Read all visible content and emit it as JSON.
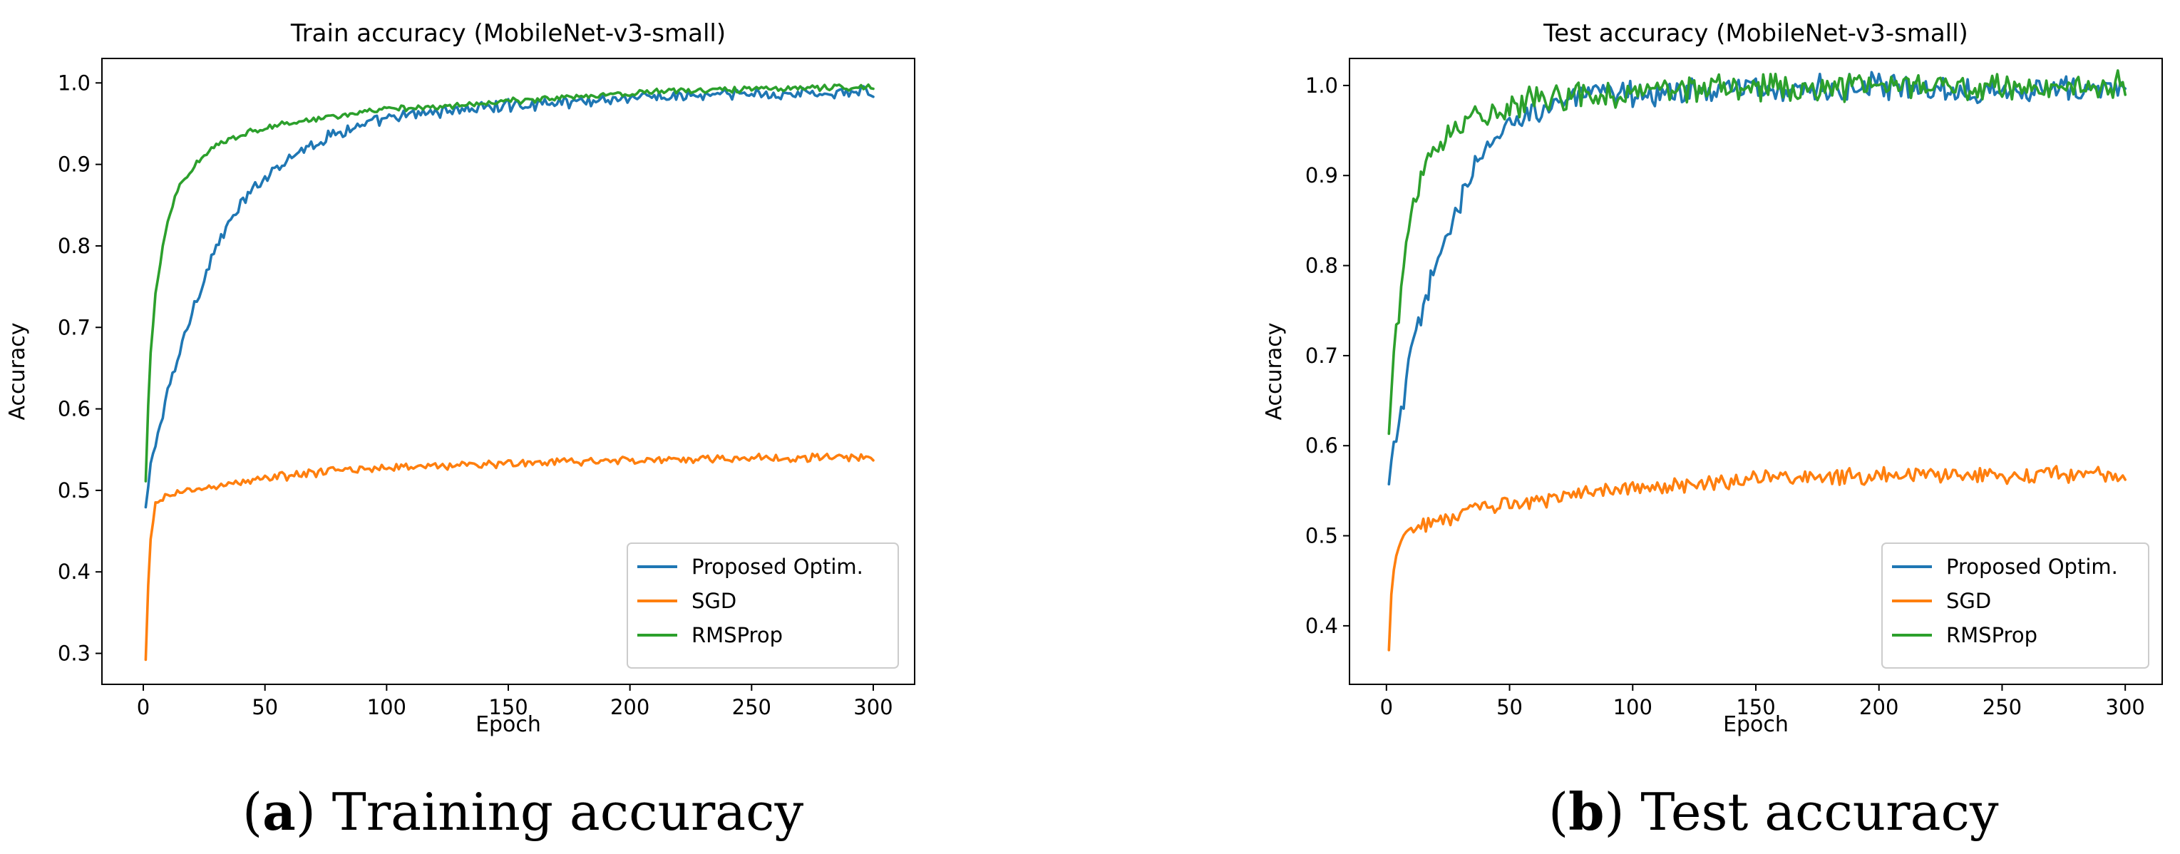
{
  "chart_data": [
    {
      "type": "line",
      "title": "Train accuracy (MobileNet-v3-small)",
      "xlabel": "Epoch",
      "ylabel": "Accuracy",
      "xlim": [
        -17,
        317
      ],
      "ylim": [
        0.262,
        1.03
      ],
      "xticks": [
        0,
        50,
        100,
        150,
        200,
        250,
        300
      ],
      "xtick_labels": [
        "0",
        "50",
        "100",
        "150",
        "200",
        "250",
        "300"
      ],
      "yticks": [
        0.3,
        0.4,
        0.5,
        0.6,
        0.7,
        0.8,
        0.9,
        1.0
      ],
      "ytick_labels": [
        "0.3",
        "0.4",
        "0.5",
        "0.6",
        "0.7",
        "0.8",
        "0.9",
        "1.0"
      ],
      "legend_position": "lower-right",
      "caption": {
        "letter": "a",
        "text": ") Training accuracy"
      },
      "series": [
        {
          "name": "Proposed Optim.",
          "color": "#1f77b4",
          "noise": 0.006,
          "x": [
            1,
            3,
            5,
            8,
            10,
            15,
            20,
            25,
            30,
            40,
            50,
            60,
            70,
            80,
            100,
            120,
            150,
            200,
            250,
            300
          ],
          "y": [
            0.475,
            0.53,
            0.56,
            0.59,
            0.62,
            0.67,
            0.72,
            0.76,
            0.8,
            0.85,
            0.885,
            0.91,
            0.925,
            0.94,
            0.955,
            0.965,
            0.972,
            0.982,
            0.986,
            0.988
          ]
        },
        {
          "name": "SGD",
          "color": "#ff7f0e",
          "noise": 0.004,
          "x": [
            1,
            2,
            3,
            5,
            8,
            10,
            20,
            30,
            50,
            75,
            100,
            150,
            200,
            250,
            300
          ],
          "y": [
            0.29,
            0.38,
            0.44,
            0.48,
            0.49,
            0.495,
            0.5,
            0.505,
            0.515,
            0.523,
            0.528,
            0.533,
            0.537,
            0.54,
            0.54
          ]
        },
        {
          "name": "RMSProp",
          "color": "#2ca02c",
          "noise": 0.003,
          "x": [
            1,
            2,
            3,
            5,
            8,
            10,
            13,
            15,
            20,
            25,
            30,
            40,
            50,
            75,
            100,
            150,
            200,
            250,
            300
          ],
          "y": [
            0.51,
            0.6,
            0.67,
            0.74,
            0.8,
            0.83,
            0.86,
            0.875,
            0.895,
            0.91,
            0.925,
            0.937,
            0.945,
            0.958,
            0.967,
            0.977,
            0.988,
            0.993,
            0.995
          ]
        }
      ]
    },
    {
      "type": "line",
      "title": "Test accuracy (MobileNet-v3-small)",
      "xlabel": "Epoch",
      "ylabel": "Accuracy",
      "xlim": [
        -15,
        315
      ],
      "ylim": [
        0.335,
        1.03
      ],
      "xticks": [
        0,
        50,
        100,
        150,
        200,
        250,
        300
      ],
      "xtick_labels": [
        "0",
        "50",
        "100",
        "150",
        "200",
        "250",
        "300"
      ],
      "yticks": [
        0.4,
        0.5,
        0.6,
        0.7,
        0.8,
        0.9,
        1.0
      ],
      "ytick_labels": [
        "0.4",
        "0.5",
        "0.6",
        "0.7",
        "0.8",
        "0.9",
        "1.0"
      ],
      "legend_position": "lower-right",
      "caption": {
        "letter": "b",
        "text": ") Test accuracy"
      },
      "series": [
        {
          "name": "Proposed Optim.",
          "color": "#1f77b4",
          "noise": 0.012,
          "x": [
            1,
            3,
            5,
            8,
            10,
            15,
            20,
            25,
            30,
            40,
            50,
            60,
            80,
            100,
            150,
            200,
            250,
            300
          ],
          "y": [
            0.55,
            0.6,
            0.62,
            0.67,
            0.7,
            0.75,
            0.8,
            0.84,
            0.87,
            0.93,
            0.955,
            0.975,
            0.988,
            0.992,
            0.996,
            0.997,
            0.996,
            0.995
          ]
        },
        {
          "name": "SGD",
          "color": "#ff7f0e",
          "noise": 0.007,
          "x": [
            1,
            2,
            3,
            5,
            8,
            10,
            20,
            30,
            50,
            75,
            100,
            150,
            200,
            250,
            300
          ],
          "y": [
            0.37,
            0.44,
            0.47,
            0.49,
            0.505,
            0.51,
            0.515,
            0.525,
            0.535,
            0.545,
            0.553,
            0.563,
            0.567,
            0.568,
            0.568
          ]
        },
        {
          "name": "RMSProp",
          "color": "#2ca02c",
          "noise": 0.012,
          "x": [
            1,
            2,
            3,
            5,
            8,
            10,
            13,
            15,
            20,
            25,
            30,
            40,
            50,
            75,
            100,
            150,
            200,
            250,
            300
          ],
          "y": [
            0.61,
            0.66,
            0.7,
            0.75,
            0.82,
            0.86,
            0.89,
            0.91,
            0.935,
            0.95,
            0.96,
            0.97,
            0.978,
            0.988,
            0.993,
            0.997,
            0.998,
            0.999,
            0.999
          ]
        }
      ]
    }
  ]
}
